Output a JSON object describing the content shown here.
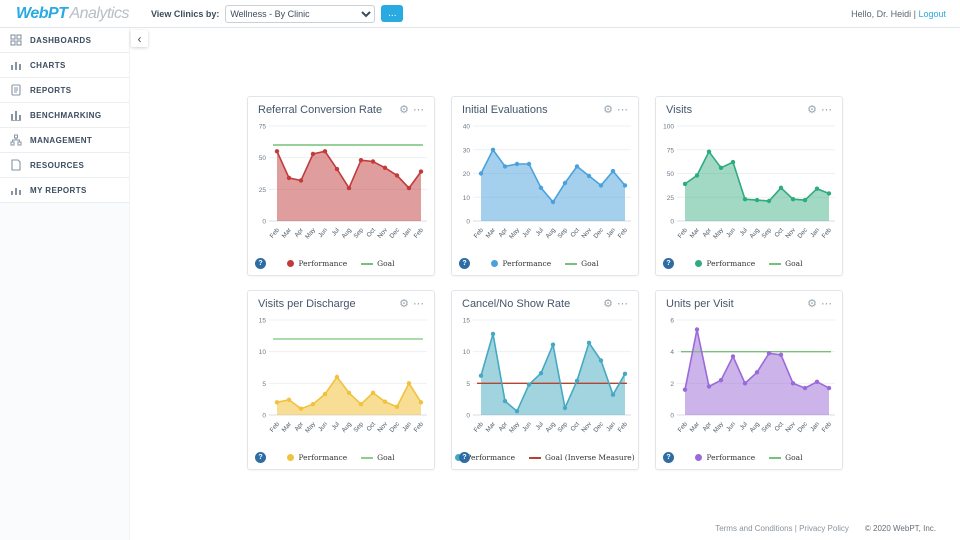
{
  "topbar": {
    "logo_primary": "WebPT",
    "logo_secondary": "Analytics",
    "view_clinics_label": "View Clinics by:",
    "clinic_selected": "Wellness - By Clinic",
    "more_button_label": "...",
    "greeting": "Hello, Dr. Heidi |",
    "logout_label": "Logout"
  },
  "sidebar": {
    "collapse_icon": "‹",
    "items": [
      {
        "label": "DASHBOARDS",
        "icon": "dashboard-grid-icon"
      },
      {
        "label": "CHARTS",
        "icon": "bar-chart-icon"
      },
      {
        "label": "REPORTS",
        "icon": "report-icon"
      },
      {
        "label": "BENCHMARKING",
        "icon": "benchmark-chart-icon"
      },
      {
        "label": "MANAGEMENT",
        "icon": "org-icon"
      },
      {
        "label": "RESOURCES",
        "icon": "document-icon"
      },
      {
        "label": "MY REPORTS",
        "icon": "my-reports-icon"
      }
    ]
  },
  "chart_data": [
    {
      "type": "area",
      "title": "Referral Conversion Rate",
      "categories": [
        "Feb",
        "Mar",
        "Apr",
        "May",
        "Jun",
        "Jul",
        "Aug",
        "Sep",
        "Oct",
        "Nov",
        "Dec",
        "Jan",
        "Feb"
      ],
      "series": [
        {
          "name": "Performance",
          "values": [
            55,
            34,
            32,
            53,
            55,
            41,
            26,
            48,
            47,
            42,
            36,
            26,
            39
          ],
          "color": "#c23b3b",
          "fill_opacity": 0.5
        }
      ],
      "goal": {
        "label": "Goal",
        "value": 60,
        "color": "#77c17c"
      },
      "yticks": [
        0,
        25,
        50,
        75
      ],
      "ylim": [
        0,
        75
      ],
      "grid": true,
      "legend_position": "bottom"
    },
    {
      "type": "area",
      "title": "Initial Evaluations",
      "categories": [
        "Feb",
        "Mar",
        "Apr",
        "May",
        "Jun",
        "Jul",
        "Aug",
        "Sep",
        "Oct",
        "Nov",
        "Dec",
        "Jan",
        "Feb"
      ],
      "series": [
        {
          "name": "Performance",
          "values": [
            20,
            30,
            23,
            24,
            24,
            14,
            8,
            16,
            23,
            19,
            15,
            21,
            15
          ],
          "color": "#4aa2dc",
          "fill_opacity": 0.5
        }
      ],
      "goal": {
        "label": "Goal",
        "value": null,
        "color": "#77c17c"
      },
      "yticks": [
        0,
        10,
        20,
        30,
        40
      ],
      "ylim": [
        0,
        40
      ],
      "grid": true,
      "legend_position": "bottom"
    },
    {
      "type": "area",
      "title": "Visits",
      "categories": [
        "Feb",
        "Mar",
        "Apr",
        "May",
        "Jun",
        "Jul",
        "Aug",
        "Sep",
        "Oct",
        "Nov",
        "Dec",
        "Jan",
        "Feb"
      ],
      "series": [
        {
          "name": "Performance",
          "values": [
            39,
            48,
            73,
            56,
            62,
            23,
            22,
            21,
            35,
            23,
            22,
            34,
            29
          ],
          "color": "#2fab7f",
          "fill_opacity": 0.45
        }
      ],
      "goal": {
        "label": "Goal",
        "value": null,
        "color": "#77c17c"
      },
      "yticks": [
        0,
        25,
        50,
        75,
        100
      ],
      "ylim": [
        0,
        100
      ],
      "grid": true,
      "legend_position": "bottom"
    },
    {
      "type": "area",
      "title": "Visits per Discharge",
      "categories": [
        "Feb",
        "Mar",
        "Apr",
        "May",
        "Jun",
        "Jul",
        "Aug",
        "Sep",
        "Oct",
        "Nov",
        "Dec",
        "Jan",
        "Feb"
      ],
      "series": [
        {
          "name": "Performance",
          "values": [
            2,
            2.4,
            1,
            1.7,
            3.3,
            6,
            3.5,
            1.7,
            3.5,
            2.1,
            1.3,
            5,
            2
          ],
          "color": "#f0c23d",
          "fill_opacity": 0.55
        }
      ],
      "goal": {
        "label": "Goal",
        "value": 12,
        "color": "#8fcd8f"
      },
      "yticks": [
        0,
        5,
        10,
        15
      ],
      "ylim": [
        0,
        15
      ],
      "grid": true,
      "legend_position": "bottom"
    },
    {
      "type": "area",
      "title": "Cancel/No Show Rate",
      "categories": [
        "Feb",
        "Mar",
        "Apr",
        "May",
        "Jun",
        "Jul",
        "Aug",
        "Sep",
        "Oct",
        "Nov",
        "Dec",
        "Jan",
        "Feb"
      ],
      "series": [
        {
          "name": "Performance",
          "values": [
            6.2,
            12.8,
            2.2,
            0.6,
            4.8,
            6.6,
            11.1,
            1.1,
            5.4,
            11.4,
            8.6,
            3.2,
            6.5
          ],
          "color": "#45a9c2",
          "fill_opacity": 0.5
        }
      ],
      "goal": {
        "label": "Goal (Inverse Measure)",
        "value": 5,
        "color": "#b5432f"
      },
      "yticks": [
        0,
        5,
        10,
        15
      ],
      "ylim": [
        0,
        15
      ],
      "grid": true,
      "legend_position": "bottom"
    },
    {
      "type": "area",
      "title": "Units per Visit",
      "categories": [
        "Feb",
        "Mar",
        "Apr",
        "May",
        "Jun",
        "Jul",
        "Aug",
        "Sep",
        "Oct",
        "Nov",
        "Dec",
        "Jan",
        "Feb"
      ],
      "series": [
        {
          "name": "Performance",
          "values": [
            1.6,
            5.4,
            1.8,
            2.2,
            3.7,
            2.0,
            2.7,
            3.9,
            3.8,
            2.0,
            1.7,
            2.1,
            1.7
          ],
          "color": "#9a6ad8",
          "fill_opacity": 0.5
        }
      ],
      "goal": {
        "label": "Goal",
        "value": 4,
        "color": "#77c17c"
      },
      "yticks": [
        0,
        2,
        4,
        6
      ],
      "ylim": [
        0,
        6
      ],
      "grid": true,
      "legend_position": "bottom"
    }
  ],
  "footer": {
    "links": "Terms and Conditions | Privacy Policy",
    "copyright": "© 2020 WebPT, Inc."
  }
}
